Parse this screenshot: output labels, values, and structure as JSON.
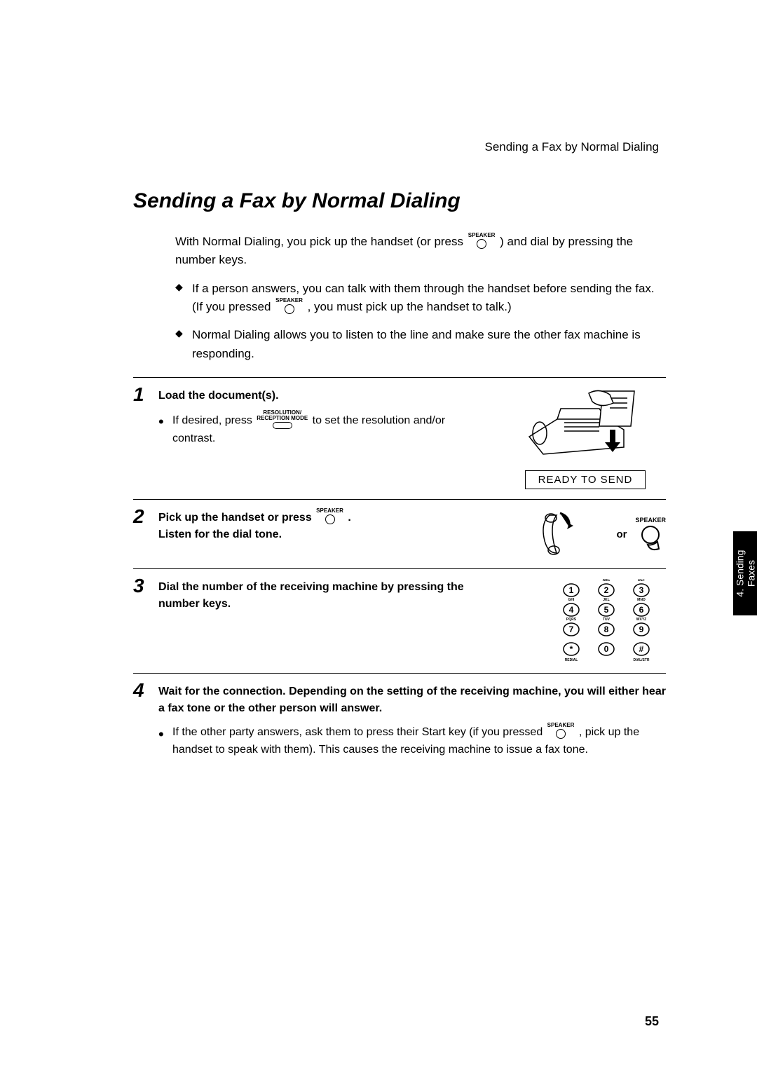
{
  "running_head": "Sending a Fax by Normal Dialing",
  "title": "Sending a Fax by Normal Dialing",
  "speaker_label": "SPEAKER",
  "resolution_label_top": "RESOLUTION/",
  "resolution_label_bot": "RECEPTION MODE",
  "intro_a": "With Normal Dialing, you pick up the handset (or press ",
  "intro_b": " ) and dial by pressing the number keys.",
  "bul1_a": "If a person answers, you can talk with them through the handset before sending the fax. (If you pressed ",
  "bul1_b": " , you must pick up the handset to talk.)",
  "bul2": "Normal Dialing allows you to listen to the line and make sure the other fax machine is responding.",
  "step1_lead": "Load the document(s).",
  "step1_sub_a": "If desired, press ",
  "step1_sub_b": " to set the resolution and/or contrast.",
  "ready_text": "READY TO SEND",
  "step2_lead_a": "Pick up the handset or press ",
  "step2_lead_b": " .",
  "step2_lead_c": "Listen for the dial tone.",
  "or_text": "or",
  "step3_lead": "Dial the number of the receiving machine by pressing the number keys.",
  "step4_lead": "Wait for the connection. Depending on the setting of the receiving machine, you will either hear a fax tone or the other person will answer.",
  "step4_sub_a": "If the other party answers, ask them to press their Start key (if you pressed ",
  "step4_sub_b": " , pick up the handset to speak with them). This causes the receiving machine to issue a fax tone.",
  "tab_line1": "4. Sending",
  "tab_line2": "Faxes",
  "page_number": "55",
  "keypad": {
    "rows": [
      [
        {
          "d": "1",
          "s": ""
        },
        {
          "d": "2",
          "s": "ABC"
        },
        {
          "d": "3",
          "s": "DEF"
        }
      ],
      [
        {
          "d": "4",
          "s": "GHI"
        },
        {
          "d": "5",
          "s": "JKL"
        },
        {
          "d": "6",
          "s": "MNO"
        }
      ],
      [
        {
          "d": "7",
          "s": "PQRS"
        },
        {
          "d": "8",
          "s": "TUV"
        },
        {
          "d": "9",
          "s": "WXYZ"
        }
      ],
      [
        {
          "d": "*",
          "s": ""
        },
        {
          "d": "0",
          "s": ""
        },
        {
          "d": "#",
          "s": ""
        }
      ]
    ],
    "sublabels": [
      "REDIAL",
      "",
      "DIAL/STR"
    ]
  },
  "colors": {
    "text": "#000000",
    "bg": "#ffffff",
    "tab_bg": "#000000",
    "tab_fg": "#ffffff"
  },
  "fontsizes": {
    "title": 30,
    "body": 17,
    "step_num": 28,
    "step_text": 16,
    "tab": 14,
    "pagenum": 18
  }
}
